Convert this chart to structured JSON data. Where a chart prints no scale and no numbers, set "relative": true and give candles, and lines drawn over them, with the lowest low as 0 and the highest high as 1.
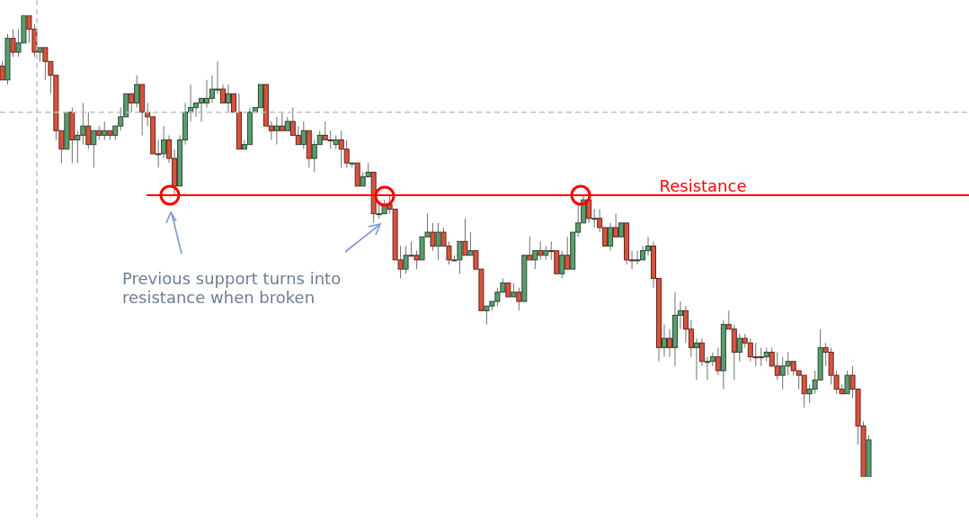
{
  "chart_data": {
    "type": "candlestick",
    "relative": true,
    "categories": [
      null,
      null,
      null,
      null,
      null,
      null,
      null,
      null,
      null,
      null,
      null,
      null,
      null,
      null,
      null,
      null,
      null,
      null,
      null,
      null,
      null,
      null,
      null,
      null,
      null,
      null,
      null,
      null,
      null,
      null,
      null,
      null,
      null,
      null,
      null,
      null,
      null,
      null,
      null,
      null,
      null,
      null,
      null,
      null,
      null,
      null,
      null,
      null,
      null,
      null,
      null,
      null,
      null,
      null,
      null,
      null,
      null,
      null,
      null,
      null,
      null,
      null,
      null,
      null,
      null,
      null,
      null,
      null,
      null,
      null,
      null,
      null,
      null,
      null,
      null,
      null,
      null,
      null,
      null,
      null,
      null,
      null,
      null,
      null,
      null,
      null,
      null,
      null,
      null,
      null,
      null,
      null,
      null,
      null,
      null,
      null,
      null,
      null,
      null,
      null,
      null,
      null,
      null,
      null,
      null,
      null,
      null,
      null,
      null,
      null,
      null,
      null,
      null,
      null,
      null,
      null,
      null,
      null,
      null,
      null,
      null,
      null,
      null,
      null,
      null,
      null,
      null,
      null,
      null,
      null,
      null,
      null,
      null,
      null,
      null,
      null,
      null,
      null,
      null,
      null,
      null,
      null,
      null,
      null,
      null,
      null,
      null,
      null,
      null,
      null,
      null,
      null,
      null,
      null,
      null,
      null,
      null,
      null,
      null,
      null,
      null,
      null
    ],
    "ohlc": [
      [
        0.89,
        0.9,
        0.86,
        0.86
      ],
      [
        0.86,
        0.96,
        0.85,
        0.95
      ],
      [
        0.95,
        0.97,
        0.91,
        0.92
      ],
      [
        0.92,
        0.97,
        0.91,
        0.94
      ],
      [
        0.94,
        1.0,
        0.94,
        1.0
      ],
      [
        1.0,
        1.0,
        0.94,
        0.97
      ],
      [
        0.97,
        0.98,
        0.91,
        0.92
      ],
      [
        0.92,
        0.93,
        0.9,
        0.93
      ],
      [
        0.93,
        0.93,
        0.86,
        0.9
      ],
      [
        0.9,
        0.9,
        0.83,
        0.87
      ],
      [
        0.87,
        0.87,
        0.73,
        0.75
      ],
      [
        0.75,
        0.75,
        0.68,
        0.71
      ],
      [
        0.71,
        0.79,
        0.71,
        0.79
      ],
      [
        0.79,
        0.8,
        0.68,
        0.73
      ],
      [
        0.73,
        0.75,
        0.68,
        0.74
      ],
      [
        0.74,
        0.81,
        0.72,
        0.76
      ],
      [
        0.76,
        0.79,
        0.71,
        0.72
      ],
      [
        0.72,
        0.75,
        0.67,
        0.75
      ],
      [
        0.75,
        0.76,
        0.73,
        0.74
      ],
      [
        0.74,
        0.77,
        0.73,
        0.75
      ],
      [
        0.75,
        0.75,
        0.73,
        0.74
      ],
      [
        0.74,
        0.76,
        0.73,
        0.76
      ],
      [
        0.76,
        0.8,
        0.75,
        0.78
      ],
      [
        0.78,
        0.83,
        0.78,
        0.83
      ],
      [
        0.83,
        0.83,
        0.79,
        0.81
      ],
      [
        0.81,
        0.87,
        0.8,
        0.85
      ],
      [
        0.85,
        0.85,
        0.74,
        0.79
      ],
      [
        0.79,
        0.81,
        0.76,
        0.78
      ],
      [
        0.78,
        0.78,
        0.7,
        0.7
      ],
      [
        0.7,
        0.73,
        0.67,
        0.7
      ],
      [
        0.7,
        0.76,
        0.69,
        0.73
      ],
      [
        0.73,
        0.74,
        0.68,
        0.69
      ],
      [
        0.69,
        0.71,
        0.61,
        0.63
      ],
      [
        0.63,
        0.74,
        0.63,
        0.73
      ],
      [
        0.73,
        0.81,
        0.72,
        0.79
      ],
      [
        0.79,
        0.85,
        0.77,
        0.8
      ],
      [
        0.8,
        0.81,
        0.78,
        0.81
      ],
      [
        0.81,
        0.82,
        0.77,
        0.82
      ],
      [
        0.81,
        0.86,
        0.8,
        0.82
      ],
      [
        0.82,
        0.87,
        0.81,
        0.84
      ],
      [
        0.84,
        0.9,
        0.83,
        0.84
      ],
      [
        0.84,
        0.85,
        0.81,
        0.81
      ],
      [
        0.81,
        0.85,
        0.79,
        0.83
      ],
      [
        0.83,
        0.83,
        0.79,
        0.79
      ],
      [
        0.79,
        0.83,
        0.71,
        0.71
      ],
      [
        0.71,
        0.73,
        0.71,
        0.72
      ],
      [
        0.72,
        0.8,
        0.72,
        0.79
      ],
      [
        0.79,
        0.8,
        0.79,
        0.8
      ],
      [
        0.8,
        0.85,
        0.8,
        0.85
      ],
      [
        0.85,
        0.85,
        0.76,
        0.76
      ],
      [
        0.76,
        0.77,
        0.73,
        0.75
      ],
      [
        0.75,
        0.78,
        0.72,
        0.76
      ],
      [
        0.76,
        0.79,
        0.75,
        0.75
      ],
      [
        0.75,
        0.78,
        0.75,
        0.77
      ],
      [
        0.77,
        0.8,
        0.74,
        0.74
      ],
      [
        0.74,
        0.76,
        0.72,
        0.72
      ],
      [
        0.72,
        0.77,
        0.71,
        0.75
      ],
      [
        0.75,
        0.75,
        0.67,
        0.69
      ],
      [
        0.69,
        0.73,
        0.66,
        0.72
      ],
      [
        0.72,
        0.75,
        0.72,
        0.74
      ],
      [
        0.74,
        0.77,
        0.73,
        0.73
      ],
      [
        0.73,
        0.75,
        0.71,
        0.73
      ],
      [
        0.72,
        0.74,
        0.71,
        0.73
      ],
      [
        0.73,
        0.75,
        0.67,
        0.71
      ],
      [
        0.71,
        0.73,
        0.67,
        0.68
      ],
      [
        0.68,
        0.68,
        0.67,
        0.68
      ],
      [
        0.68,
        0.68,
        0.63,
        0.63
      ],
      [
        0.63,
        0.66,
        0.63,
        0.65
      ],
      [
        0.65,
        0.68,
        0.65,
        0.66
      ],
      [
        0.66,
        0.66,
        0.55,
        0.57
      ],
      [
        0.57,
        0.59,
        0.56,
        0.57
      ],
      [
        0.57,
        0.6,
        0.57,
        0.59
      ],
      [
        0.59,
        0.61,
        0.57,
        0.58
      ],
      [
        0.58,
        0.58,
        0.47,
        0.47
      ],
      [
        0.47,
        0.5,
        0.43,
        0.45
      ],
      [
        0.45,
        0.5,
        0.44,
        0.48
      ],
      [
        0.48,
        0.51,
        0.48,
        0.48
      ],
      [
        0.48,
        0.49,
        0.45,
        0.47
      ],
      [
        0.47,
        0.52,
        0.47,
        0.52
      ],
      [
        0.52,
        0.57,
        0.52,
        0.53
      ],
      [
        0.53,
        0.55,
        0.49,
        0.5
      ],
      [
        0.5,
        0.55,
        0.47,
        0.53
      ],
      [
        0.53,
        0.54,
        0.5,
        0.5
      ],
      [
        0.5,
        0.51,
        0.46,
        0.47
      ],
      [
        0.47,
        0.48,
        0.47,
        0.47
      ],
      [
        0.47,
        0.51,
        0.44,
        0.51
      ],
      [
        0.51,
        0.56,
        0.48,
        0.48
      ],
      [
        0.48,
        0.53,
        0.48,
        0.49
      ],
      [
        0.49,
        0.49,
        0.45,
        0.45
      ],
      [
        0.45,
        0.45,
        0.36,
        0.36
      ],
      [
        0.36,
        0.37,
        0.33,
        0.37
      ],
      [
        0.37,
        0.38,
        0.36,
        0.38
      ],
      [
        0.38,
        0.41,
        0.37,
        0.4
      ],
      [
        0.4,
        0.43,
        0.4,
        0.42
      ],
      [
        0.42,
        0.42,
        0.39,
        0.39
      ],
      [
        0.39,
        0.42,
        0.39,
        0.4
      ],
      [
        0.4,
        0.41,
        0.36,
        0.38
      ],
      [
        0.38,
        0.48,
        0.38,
        0.48
      ],
      [
        0.48,
        0.52,
        0.47,
        0.47
      ],
      [
        0.47,
        0.49,
        0.45,
        0.49
      ],
      [
        0.49,
        0.51,
        0.47,
        0.48
      ],
      [
        0.48,
        0.5,
        0.47,
        0.49
      ],
      [
        0.49,
        0.51,
        0.47,
        0.49
      ],
      [
        0.49,
        0.49,
        0.44,
        0.44
      ],
      [
        0.44,
        0.49,
        0.43,
        0.48
      ],
      [
        0.48,
        0.52,
        0.45,
        0.45
      ],
      [
        0.45,
        0.53,
        0.45,
        0.53
      ],
      [
        0.53,
        0.59,
        0.52,
        0.55
      ],
      [
        0.55,
        0.61,
        0.55,
        0.6
      ],
      [
        0.6,
        0.6,
        0.55,
        0.56
      ],
      [
        0.56,
        0.58,
        0.54,
        0.56
      ],
      [
        0.56,
        0.58,
        0.53,
        0.54
      ],
      [
        0.54,
        0.54,
        0.5,
        0.5
      ],
      [
        0.5,
        0.55,
        0.49,
        0.54
      ],
      [
        0.54,
        0.57,
        0.52,
        0.52
      ],
      [
        0.52,
        0.55,
        0.52,
        0.55
      ],
      [
        0.55,
        0.55,
        0.46,
        0.47
      ],
      [
        0.47,
        0.49,
        0.45,
        0.47
      ],
      [
        0.47,
        0.49,
        0.46,
        0.47
      ],
      [
        0.47,
        0.5,
        0.47,
        0.49
      ],
      [
        0.49,
        0.52,
        0.48,
        0.5
      ],
      [
        0.5,
        0.51,
        0.41,
        0.43
      ],
      [
        0.43,
        0.43,
        0.25,
        0.28
      ],
      [
        0.28,
        0.33,
        0.26,
        0.3
      ],
      [
        0.3,
        0.32,
        0.26,
        0.28
      ],
      [
        0.28,
        0.4,
        0.24,
        0.35
      ],
      [
        0.35,
        0.38,
        0.32,
        0.36
      ],
      [
        0.36,
        0.37,
        0.29,
        0.32
      ],
      [
        0.32,
        0.34,
        0.26,
        0.28
      ],
      [
        0.28,
        0.3,
        0.21,
        0.29
      ],
      [
        0.29,
        0.3,
        0.24,
        0.25
      ],
      [
        0.25,
        0.26,
        0.21,
        0.25
      ],
      [
        0.25,
        0.27,
        0.24,
        0.26
      ],
      [
        0.26,
        0.28,
        0.22,
        0.23
      ],
      [
        0.23,
        0.34,
        0.19,
        0.33
      ],
      [
        0.33,
        0.36,
        0.32,
        0.32
      ],
      [
        0.32,
        0.33,
        0.21,
        0.27
      ],
      [
        0.27,
        0.31,
        0.25,
        0.3
      ],
      [
        0.3,
        0.31,
        0.28,
        0.29
      ],
      [
        0.29,
        0.3,
        0.25,
        0.26
      ],
      [
        0.26,
        0.29,
        0.24,
        0.26
      ],
      [
        0.26,
        0.28,
        0.24,
        0.26
      ],
      [
        0.26,
        0.28,
        0.25,
        0.27
      ],
      [
        0.27,
        0.28,
        0.24,
        0.24
      ],
      [
        0.24,
        0.27,
        0.21,
        0.22
      ],
      [
        0.22,
        0.26,
        0.19,
        0.24
      ],
      [
        0.24,
        0.27,
        0.22,
        0.25
      ],
      [
        0.25,
        0.25,
        0.22,
        0.23
      ],
      [
        0.23,
        0.23,
        0.19,
        0.22
      ],
      [
        0.22,
        0.22,
        0.15,
        0.18
      ],
      [
        0.18,
        0.2,
        0.16,
        0.19
      ],
      [
        0.19,
        0.23,
        0.18,
        0.21
      ],
      [
        0.21,
        0.32,
        0.21,
        0.28
      ],
      [
        0.28,
        0.29,
        0.24,
        0.27
      ],
      [
        0.27,
        0.28,
        0.2,
        0.22
      ],
      [
        0.22,
        0.23,
        0.18,
        0.19
      ],
      [
        0.19,
        0.2,
        0.18,
        0.18
      ],
      [
        0.18,
        0.23,
        0.18,
        0.22
      ],
      [
        0.22,
        0.24,
        0.17,
        0.19
      ],
      [
        0.19,
        0.19,
        0.07,
        0.11
      ],
      [
        0.11,
        0.12,
        0.0,
        0.0
      ],
      [
        0.0,
        0.09,
        0.0,
        0.08
      ]
    ],
    "colors": [
      "#d9533e",
      "#5a9e6f",
      "#d9533e",
      "#5a9e6f",
      "#5a9e6f",
      "#d9533e",
      "#d9533e",
      "#5a9e6f",
      "#d9533e",
      "#d9533e",
      "#d9533e",
      "#d9533e",
      "#5a9e6f",
      "#d9533e",
      "#5a9e6f",
      "#5a9e6f",
      "#d9533e",
      "#5a9e6f",
      "#d9533e",
      "#5a9e6f",
      "#d9533e",
      "#5a9e6f",
      "#5a9e6f",
      "#5a9e6f",
      "#d9533e",
      "#5a9e6f",
      "#d9533e",
      "#d9533e",
      "#d9533e",
      "#d9533e",
      "#5a9e6f",
      "#d9533e",
      "#d9533e",
      "#5a9e6f",
      "#5a9e6f",
      "#5a9e6f",
      "#5a9e6f",
      "#5a9e6f",
      "#5a9e6f",
      "#5a9e6f",
      "#5a9e6f",
      "#d9533e",
      "#5a9e6f",
      "#d9533e",
      "#d9533e",
      "#5a9e6f",
      "#5a9e6f",
      "#5a9e6f",
      "#5a9e6f",
      "#d9533e",
      "#d9533e",
      "#5a9e6f",
      "#d9533e",
      "#5a9e6f",
      "#d9533e",
      "#d9533e",
      "#5a9e6f",
      "#d9533e",
      "#5a9e6f",
      "#5a9e6f",
      "#d9533e",
      "#d9533e",
      "#5a9e6f",
      "#d9533e",
      "#d9533e",
      "#5a9e6f",
      "#d9533e",
      "#5a9e6f",
      "#5a9e6f",
      "#d9533e",
      "#5a9e6f",
      "#5a9e6f",
      "#d9533e",
      "#d9533e",
      "#d9533e",
      "#5a9e6f",
      "#d9533e",
      "#d9533e",
      "#5a9e6f",
      "#5a9e6f",
      "#d9533e",
      "#5a9e6f",
      "#d9533e",
      "#d9533e",
      "#d9533e",
      "#5a9e6f",
      "#d9533e",
      "#5a9e6f",
      "#d9533e",
      "#d9533e",
      "#5a9e6f",
      "#5a9e6f",
      "#5a9e6f",
      "#5a9e6f",
      "#d9533e",
      "#5a9e6f",
      "#d9533e",
      "#5a9e6f",
      "#d9533e",
      "#5a9e6f",
      "#d9533e",
      "#5a9e6f",
      "#d9533e",
      "#d9533e",
      "#5a9e6f",
      "#d9533e",
      "#5a9e6f",
      "#5a9e6f",
      "#5a9e6f",
      "#d9533e",
      "#5a9e6f",
      "#d9533e",
      "#d9533e",
      "#5a9e6f",
      "#d9533e",
      "#5a9e6f",
      "#d9533e",
      "#d9533e",
      "#5a9e6f",
      "#5a9e6f",
      "#5a9e6f",
      "#d9533e",
      "#d9533e",
      "#5a9e6f",
      "#d9533e",
      "#5a9e6f",
      "#5a9e6f",
      "#d9533e",
      "#d9533e",
      "#5a9e6f",
      "#d9533e",
      "#5a9e6f",
      "#5a9e6f",
      "#d9533e",
      "#5a9e6f",
      "#d9533e",
      "#d9533e",
      "#5a9e6f",
      "#d9533e",
      "#d9533e",
      "#d9533e",
      "#d9533e",
      "#5a9e6f",
      "#d9533e",
      "#d9533e",
      "#5a9e6f",
      "#5a9e6f",
      "#d9533e",
      "#d9533e",
      "#d9533e",
      "#5a9e6f",
      "#5a9e6f",
      "#5a9e6f",
      "#d9533e",
      "#d9533e",
      "#d9533e",
      "#d9533e",
      "#5a9e6f",
      "#d9533e",
      "#d9533e",
      "#d9533e",
      "#5a9e6f"
    ],
    "ref_lines": [
      {
        "axis": "y",
        "value": 0.61,
        "label": "Resistance",
        "color": "#ff0000",
        "line_style": "solid"
      },
      {
        "axis": "y",
        "value": 0.79,
        "color": "#c0c0c0",
        "line_style": "dashed"
      }
    ],
    "annotations": [
      "Previous support turns into resistance when broken"
    ]
  }
}
